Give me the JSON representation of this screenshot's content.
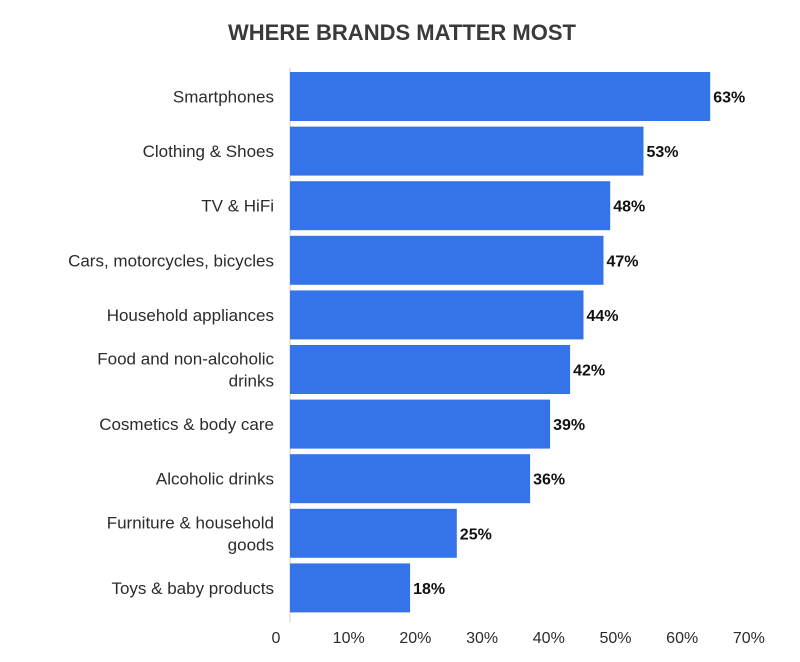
{
  "chart_data": {
    "type": "bar",
    "orientation": "horizontal",
    "title": "WHERE BRANDS MATTER MOST",
    "categories": [
      [
        "Smartphones"
      ],
      [
        "Clothing & Shoes"
      ],
      [
        "TV & HiFi"
      ],
      [
        "Cars, motorcycles, bicycles"
      ],
      [
        "Household appliances"
      ],
      [
        "Food and non-alcoholic",
        "drinks"
      ],
      [
        "Cosmetics & body care"
      ],
      [
        "Alcoholic drinks"
      ],
      [
        "Furniture & household",
        "goods"
      ],
      [
        "Toys & baby products"
      ]
    ],
    "values": [
      63,
      53,
      48,
      47,
      44,
      42,
      39,
      36,
      25,
      18
    ],
    "value_labels": [
      "63%",
      "53%",
      "48%",
      "47%",
      "44%",
      "42%",
      "39%",
      "36%",
      "25%",
      "18%"
    ],
    "x_ticks": [
      0,
      10,
      20,
      30,
      40,
      50,
      60,
      70
    ],
    "x_tick_labels": [
      "0",
      "10%",
      "20%",
      "30%",
      "40%",
      "50%",
      "60%",
      "70%"
    ],
    "xlim": [
      0,
      70
    ],
    "xlabel": "",
    "ylabel": "",
    "grid": false,
    "bar_color": "#3574e8"
  }
}
